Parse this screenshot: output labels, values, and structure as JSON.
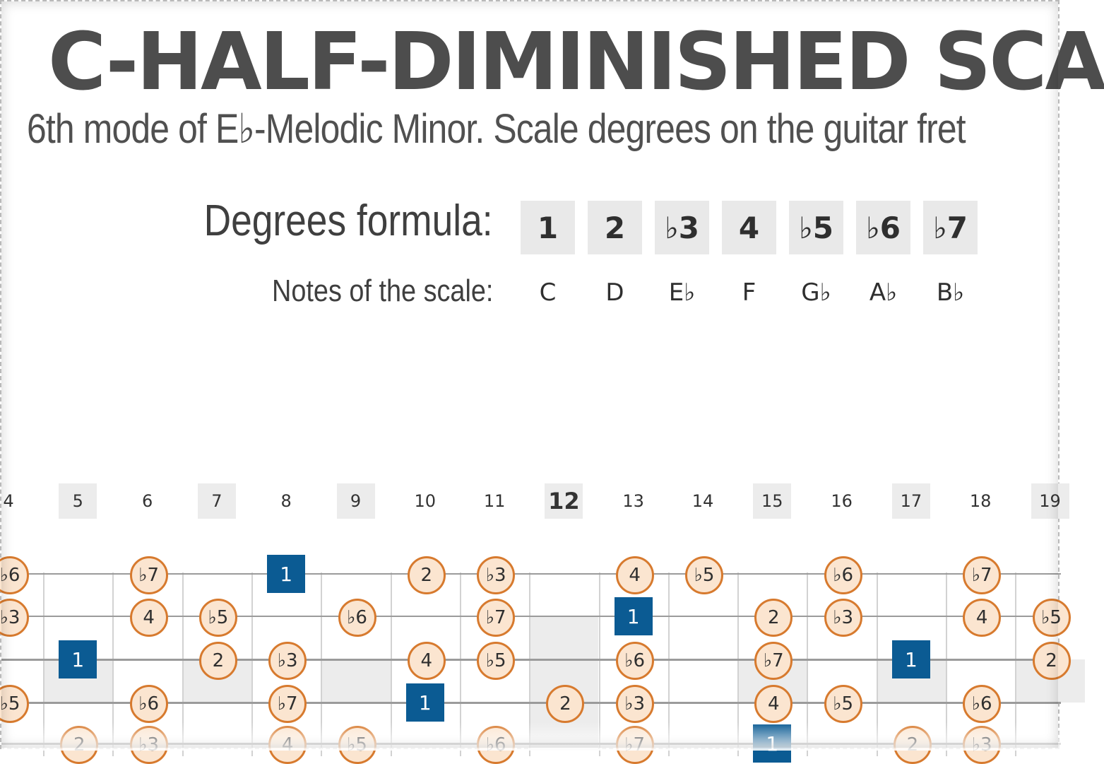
{
  "title": "C-HALF-DIMINISHED SCA",
  "subtitle": "6th mode of E♭-Melodic Minor. Scale degrees on the guitar fret",
  "formula": {
    "label": "Degrees formula:",
    "degrees": [
      "1",
      "2",
      "♭3",
      "4",
      "♭5",
      "♭6",
      "♭7"
    ]
  },
  "notes": {
    "label": "Notes of the scale:",
    "values": [
      "C",
      "D",
      "E♭",
      "F",
      "G♭",
      "A♭",
      "B♭"
    ]
  },
  "fretboard": {
    "fret_numbers": [
      "4",
      "5",
      "6",
      "7",
      "8",
      "9",
      "10",
      "11",
      "12",
      "13",
      "14",
      "15",
      "16",
      "17",
      "18",
      "19"
    ],
    "inlay_frets": [
      "5",
      "7",
      "9",
      "12",
      "15",
      "17",
      "19"
    ],
    "strings": [
      {
        "string": 1,
        "markers": [
          {
            "fret": "4",
            "degree": "♭6"
          },
          {
            "fret": "6",
            "degree": "♭7"
          },
          {
            "fret": "8",
            "degree": "1",
            "root": true
          },
          {
            "fret": "10",
            "degree": "2"
          },
          {
            "fret": "11",
            "degree": "♭3"
          },
          {
            "fret": "13",
            "degree": "4"
          },
          {
            "fret": "14",
            "degree": "♭5"
          },
          {
            "fret": "16",
            "degree": "♭6"
          },
          {
            "fret": "18",
            "degree": "♭7"
          }
        ]
      },
      {
        "string": 2,
        "markers": [
          {
            "fret": "4",
            "degree": "♭3"
          },
          {
            "fret": "6",
            "degree": "4"
          },
          {
            "fret": "7",
            "degree": "♭5"
          },
          {
            "fret": "9",
            "degree": "♭6"
          },
          {
            "fret": "11",
            "degree": "♭7"
          },
          {
            "fret": "13",
            "degree": "1",
            "root": true
          },
          {
            "fret": "15",
            "degree": "2"
          },
          {
            "fret": "16",
            "degree": "♭3"
          },
          {
            "fret": "18",
            "degree": "4"
          },
          {
            "fret": "19",
            "degree": "♭5"
          }
        ]
      },
      {
        "string": 3,
        "markers": [
          {
            "fret": "5",
            "degree": "1",
            "root": true
          },
          {
            "fret": "7",
            "degree": "2"
          },
          {
            "fret": "8",
            "degree": "♭3"
          },
          {
            "fret": "10",
            "degree": "4"
          },
          {
            "fret": "11",
            "degree": "♭5"
          },
          {
            "fret": "13",
            "degree": "♭6"
          },
          {
            "fret": "15",
            "degree": "♭7"
          },
          {
            "fret": "17",
            "degree": "1",
            "root": true
          },
          {
            "fret": "19",
            "degree": "2"
          }
        ]
      },
      {
        "string": 4,
        "markers": [
          {
            "fret": "4",
            "degree": "♭5"
          },
          {
            "fret": "6",
            "degree": "♭6"
          },
          {
            "fret": "8",
            "degree": "♭7"
          },
          {
            "fret": "10",
            "degree": "1",
            "root": true
          },
          {
            "fret": "12",
            "degree": "2"
          },
          {
            "fret": "13",
            "degree": "♭3"
          },
          {
            "fret": "15",
            "degree": "4"
          },
          {
            "fret": "16",
            "degree": "♭5"
          },
          {
            "fret": "18",
            "degree": "♭6"
          }
        ]
      },
      {
        "string": 5,
        "markers": [
          {
            "fret": "5",
            "degree": "2"
          },
          {
            "fret": "6",
            "degree": "♭3"
          },
          {
            "fret": "8",
            "degree": "4"
          },
          {
            "fret": "9",
            "degree": "♭5"
          },
          {
            "fret": "11",
            "degree": "♭6"
          },
          {
            "fret": "13",
            "degree": "♭7"
          },
          {
            "fret": "15",
            "degree": "1",
            "root": true
          },
          {
            "fret": "17",
            "degree": "2"
          },
          {
            "fret": "18",
            "degree": "♭3"
          }
        ]
      }
    ]
  },
  "colors": {
    "title": "#4d4d4d",
    "dot_fill": "#fbe5d0",
    "dot_border": "#d77a2e",
    "root_fill": "#0b5b93",
    "inlay": "#ececec"
  }
}
